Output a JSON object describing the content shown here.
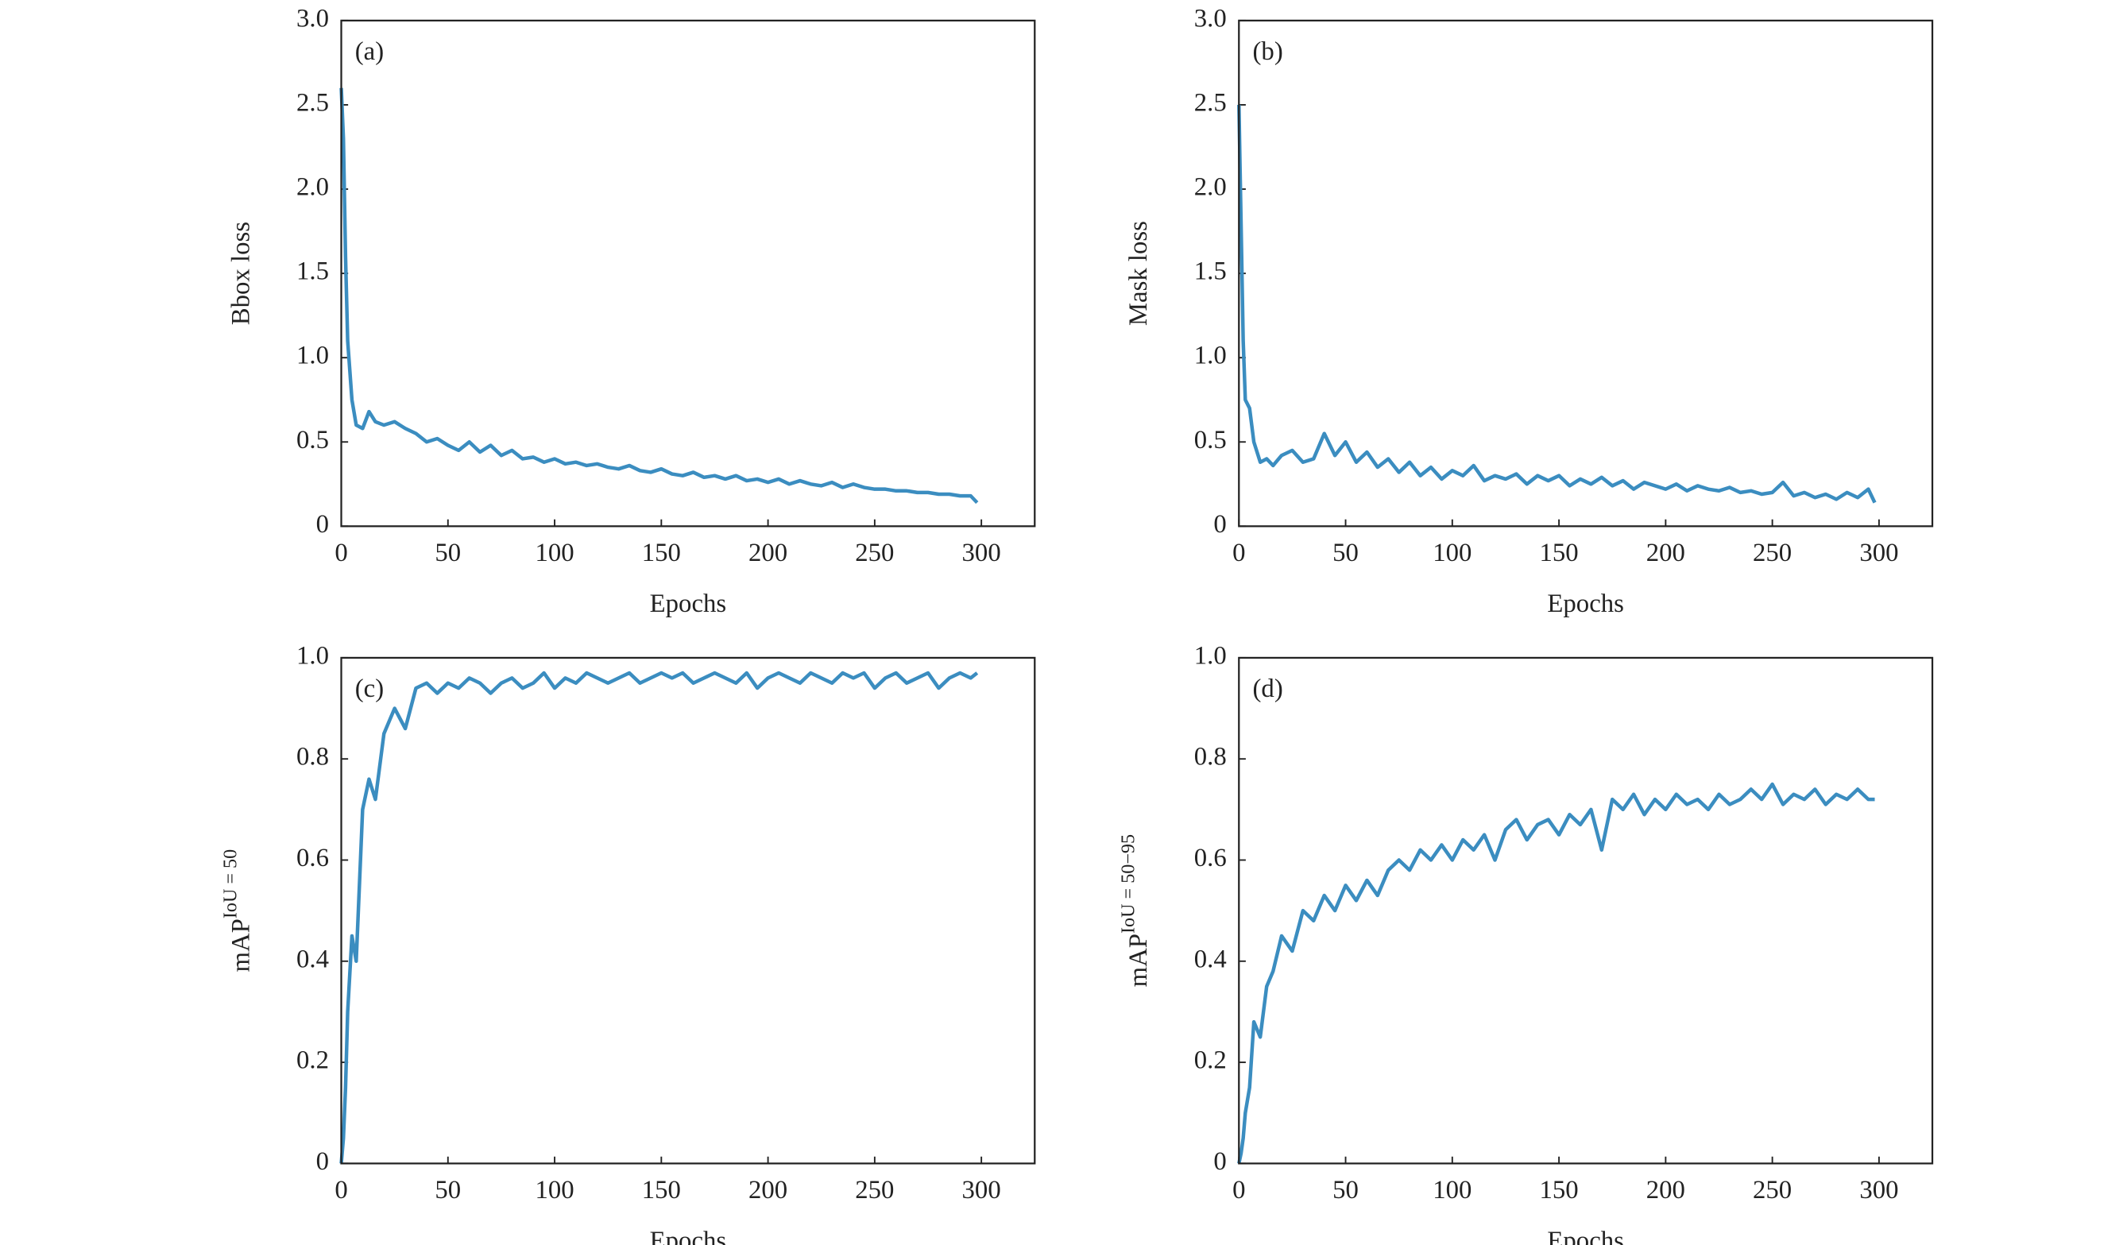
{
  "chart_data": [
    {
      "type": "line",
      "panel_label": "(a)",
      "xlabel": "Epochs",
      "ylabel": "Bbox loss",
      "xlim": [
        0,
        325
      ],
      "ylim": [
        0,
        3
      ],
      "xticks": [
        0,
        50,
        100,
        150,
        200,
        250,
        300
      ],
      "yticks": [
        0,
        0.5,
        {
          "value": 1,
          "label": "1.0"
        },
        1.5,
        {
          "value": 2,
          "label": "2.0"
        },
        2.5,
        {
          "value": 3,
          "label": "3.0"
        }
      ],
      "x": [
        0,
        1,
        2,
        3,
        5,
        7,
        10,
        13,
        16,
        20,
        25,
        30,
        35,
        40,
        45,
        50,
        55,
        60,
        65,
        70,
        75,
        80,
        85,
        90,
        95,
        100,
        105,
        110,
        115,
        120,
        125,
        130,
        135,
        140,
        145,
        150,
        155,
        160,
        165,
        170,
        175,
        180,
        185,
        190,
        195,
        200,
        205,
        210,
        215,
        220,
        225,
        230,
        235,
        240,
        245,
        250,
        255,
        260,
        265,
        270,
        275,
        280,
        285,
        290,
        295,
        298
      ],
      "series": [
        {
          "name": "Bbox loss",
          "color": "#3b8dc0",
          "values": [
            2.6,
            2.3,
            1.6,
            1.1,
            0.75,
            0.6,
            0.58,
            0.68,
            0.62,
            0.6,
            0.62,
            0.58,
            0.55,
            0.5,
            0.52,
            0.48,
            0.45,
            0.5,
            0.44,
            0.48,
            0.42,
            0.45,
            0.4,
            0.41,
            0.38,
            0.4,
            0.37,
            0.38,
            0.36,
            0.37,
            0.35,
            0.34,
            0.36,
            0.33,
            0.32,
            0.34,
            0.31,
            0.3,
            0.32,
            0.29,
            0.3,
            0.28,
            0.3,
            0.27,
            0.28,
            0.26,
            0.28,
            0.25,
            0.27,
            0.25,
            0.24,
            0.26,
            0.23,
            0.25,
            0.23,
            0.22,
            0.22,
            0.21,
            0.21,
            0.2,
            0.2,
            0.19,
            0.19,
            0.18,
            0.18,
            0.14
          ]
        }
      ]
    },
    {
      "type": "line",
      "panel_label": "(b)",
      "xlabel": "Epochs",
      "ylabel": "Mask loss",
      "xlim": [
        0,
        325
      ],
      "ylim": [
        0,
        3
      ],
      "xticks": [
        0,
        50,
        100,
        150,
        200,
        250,
        300
      ],
      "yticks": [
        0,
        0.5,
        {
          "value": 1,
          "label": "1.0"
        },
        1.5,
        {
          "value": 2,
          "label": "2.0"
        },
        2.5,
        {
          "value": 3,
          "label": "3.0"
        }
      ],
      "x": [
        0,
        1,
        2,
        3,
        5,
        7,
        10,
        13,
        16,
        20,
        25,
        30,
        35,
        40,
        45,
        50,
        55,
        60,
        65,
        70,
        75,
        80,
        85,
        90,
        95,
        100,
        105,
        110,
        115,
        120,
        125,
        130,
        135,
        140,
        145,
        150,
        155,
        160,
        165,
        170,
        175,
        180,
        185,
        190,
        195,
        200,
        205,
        210,
        215,
        220,
        225,
        230,
        235,
        240,
        245,
        250,
        255,
        260,
        265,
        270,
        275,
        280,
        285,
        290,
        295,
        298
      ],
      "series": [
        {
          "name": "Mask loss",
          "color": "#3b8dc0",
          "values": [
            2.5,
            1.8,
            1.1,
            0.75,
            0.7,
            0.5,
            0.38,
            0.4,
            0.36,
            0.42,
            0.45,
            0.38,
            0.4,
            0.55,
            0.42,
            0.5,
            0.38,
            0.44,
            0.35,
            0.4,
            0.32,
            0.38,
            0.3,
            0.35,
            0.28,
            0.33,
            0.3,
            0.36,
            0.27,
            0.3,
            0.28,
            0.31,
            0.25,
            0.3,
            0.27,
            0.3,
            0.24,
            0.28,
            0.25,
            0.29,
            0.24,
            0.27,
            0.22,
            0.26,
            0.24,
            0.22,
            0.25,
            0.21,
            0.24,
            0.22,
            0.21,
            0.23,
            0.2,
            0.21,
            0.19,
            0.2,
            0.26,
            0.18,
            0.2,
            0.17,
            0.19,
            0.16,
            0.2,
            0.17,
            0.22,
            0.14
          ]
        }
      ]
    },
    {
      "type": "line",
      "panel_label": "(c)",
      "xlabel": "Epochs",
      "ylabel": "mAP",
      "ylabel_sup": "IoU = 50",
      "xlim": [
        0,
        325
      ],
      "ylim": [
        0,
        1
      ],
      "xticks": [
        0,
        50,
        100,
        150,
        200,
        250,
        300
      ],
      "yticks": [
        0,
        0.2,
        0.4,
        0.6,
        0.8,
        {
          "value": 1,
          "label": "1.0"
        }
      ],
      "x": [
        0,
        1,
        2,
        3,
        5,
        7,
        10,
        13,
        16,
        20,
        25,
        30,
        35,
        40,
        45,
        50,
        55,
        60,
        65,
        70,
        75,
        80,
        85,
        90,
        95,
        100,
        105,
        110,
        115,
        120,
        125,
        130,
        135,
        140,
        145,
        150,
        155,
        160,
        165,
        170,
        175,
        180,
        185,
        190,
        195,
        200,
        205,
        210,
        215,
        220,
        225,
        230,
        235,
        240,
        245,
        250,
        255,
        260,
        265,
        270,
        275,
        280,
        285,
        290,
        295,
        298
      ],
      "series": [
        {
          "name": "mAP IoU = 50",
          "color": "#3b8dc0",
          "values": [
            0,
            0.05,
            0.15,
            0.3,
            0.45,
            0.4,
            0.7,
            0.76,
            0.72,
            0.85,
            0.9,
            0.86,
            0.94,
            0.95,
            0.93,
            0.95,
            0.94,
            0.96,
            0.95,
            0.93,
            0.95,
            0.96,
            0.94,
            0.95,
            0.97,
            0.94,
            0.96,
            0.95,
            0.97,
            0.96,
            0.95,
            0.96,
            0.97,
            0.95,
            0.96,
            0.97,
            0.96,
            0.97,
            0.95,
            0.96,
            0.97,
            0.96,
            0.95,
            0.97,
            0.94,
            0.96,
            0.97,
            0.96,
            0.95,
            0.97,
            0.96,
            0.95,
            0.97,
            0.96,
            0.97,
            0.94,
            0.96,
            0.97,
            0.95,
            0.96,
            0.97,
            0.94,
            0.96,
            0.97,
            0.96,
            0.97
          ]
        }
      ]
    },
    {
      "type": "line",
      "panel_label": "(d)",
      "xlabel": "Epochs",
      "ylabel": "mAP",
      "ylabel_sup": "IoU = 50−95",
      "xlim": [
        0,
        325
      ],
      "ylim": [
        0,
        1
      ],
      "xticks": [
        0,
        50,
        100,
        150,
        200,
        250,
        300
      ],
      "yticks": [
        0,
        0.2,
        0.4,
        0.6,
        0.8,
        {
          "value": 1,
          "label": "1.0"
        }
      ],
      "x": [
        0,
        1,
        2,
        3,
        5,
        7,
        10,
        13,
        16,
        20,
        25,
        30,
        35,
        40,
        45,
        50,
        55,
        60,
        65,
        70,
        75,
        80,
        85,
        90,
        95,
        100,
        105,
        110,
        115,
        120,
        125,
        130,
        135,
        140,
        145,
        150,
        155,
        160,
        165,
        170,
        175,
        180,
        185,
        190,
        195,
        200,
        205,
        210,
        215,
        220,
        225,
        230,
        235,
        240,
        245,
        250,
        255,
        260,
        265,
        270,
        275,
        280,
        285,
        290,
        295,
        298
      ],
      "series": [
        {
          "name": "mAP IoU = 50−95",
          "color": "#3b8dc0",
          "values": [
            0,
            0.02,
            0.05,
            0.1,
            0.15,
            0.28,
            0.25,
            0.35,
            0.38,
            0.45,
            0.42,
            0.5,
            0.48,
            0.53,
            0.5,
            0.55,
            0.52,
            0.56,
            0.53,
            0.58,
            0.6,
            0.58,
            0.62,
            0.6,
            0.63,
            0.6,
            0.64,
            0.62,
            0.65,
            0.6,
            0.66,
            0.68,
            0.64,
            0.67,
            0.68,
            0.65,
            0.69,
            0.67,
            0.7,
            0.62,
            0.72,
            0.7,
            0.73,
            0.69,
            0.72,
            0.7,
            0.73,
            0.71,
            0.72,
            0.7,
            0.73,
            0.71,
            0.72,
            0.74,
            0.72,
            0.75,
            0.71,
            0.73,
            0.72,
            0.74,
            0.71,
            0.73,
            0.72,
            0.74,
            0.72,
            0.72
          ]
        }
      ]
    }
  ]
}
